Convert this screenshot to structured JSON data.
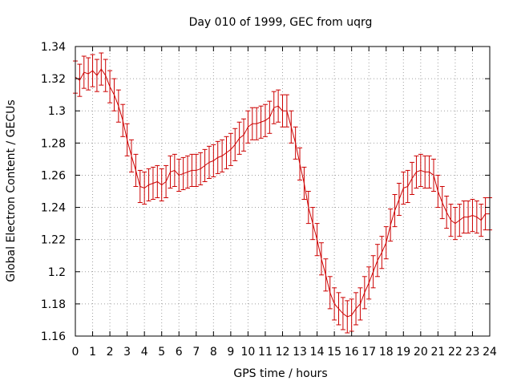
{
  "chart_data": {
    "type": "line",
    "title": "Day 010 of 1999, GEC from uqrg",
    "xlabel": "GPS time / hours",
    "ylabel": "Global Electron Content / GECUs",
    "xlim": [
      0,
      24
    ],
    "ylim": [
      1.16,
      1.34
    ],
    "grid": true,
    "x_ticks": [
      0,
      1,
      2,
      3,
      4,
      5,
      6,
      7,
      8,
      9,
      10,
      11,
      12,
      13,
      14,
      15,
      16,
      17,
      18,
      19,
      20,
      21,
      22,
      23,
      24
    ],
    "x_tick_labels": [
      "0",
      "1",
      "2",
      "3",
      "4",
      "5",
      "6",
      "7",
      "8",
      "9",
      "10",
      "11",
      "12",
      "13",
      "14",
      "15",
      "16",
      "17",
      "18",
      "19",
      "20",
      "21",
      "22",
      "23",
      "24"
    ],
    "y_ticks": [
      1.16,
      1.18,
      1.2,
      1.22,
      1.24,
      1.26,
      1.28,
      1.3,
      1.32,
      1.34
    ],
    "y_tick_labels": [
      "1.16",
      "1.18",
      "1.2",
      "1.22",
      "1.24",
      "1.26",
      "1.28",
      "1.3",
      "1.32",
      "1.34"
    ],
    "colors": {
      "series": "#cc0000",
      "grid": "#a0a0a0",
      "axis": "#000000"
    },
    "series": [
      {
        "name": "GEC",
        "error": 0.01,
        "x": [
          0,
          0.25,
          0.5,
          0.75,
          1,
          1.25,
          1.5,
          1.75,
          2,
          2.25,
          2.5,
          2.75,
          3,
          3.25,
          3.5,
          3.75,
          4,
          4.25,
          4.5,
          4.75,
          5,
          5.25,
          5.5,
          5.75,
          6,
          6.25,
          6.5,
          6.75,
          7,
          7.25,
          7.5,
          7.75,
          8,
          8.25,
          8.5,
          8.75,
          9,
          9.25,
          9.5,
          9.75,
          10,
          10.25,
          10.5,
          10.75,
          11,
          11.25,
          11.5,
          11.75,
          12,
          12.25,
          12.5,
          12.75,
          13,
          13.25,
          13.5,
          13.75,
          14,
          14.25,
          14.5,
          14.75,
          15,
          15.25,
          15.5,
          15.75,
          16,
          16.25,
          16.5,
          16.75,
          17,
          17.25,
          17.5,
          17.75,
          18,
          18.25,
          18.5,
          18.75,
          19,
          19.25,
          19.5,
          19.75,
          20,
          20.25,
          20.5,
          20.75,
          21,
          21.25,
          21.5,
          21.75,
          22,
          22.25,
          22.5,
          22.75,
          23,
          23.25,
          23.5,
          23.75,
          24
        ],
        "values": [
          1.321,
          1.319,
          1.324,
          1.323,
          1.325,
          1.322,
          1.326,
          1.322,
          1.315,
          1.31,
          1.303,
          1.294,
          1.282,
          1.272,
          1.263,
          1.253,
          1.252,
          1.254,
          1.255,
          1.256,
          1.254,
          1.256,
          1.262,
          1.263,
          1.26,
          1.261,
          1.262,
          1.263,
          1.263,
          1.264,
          1.266,
          1.268,
          1.269,
          1.271,
          1.272,
          1.274,
          1.276,
          1.279,
          1.283,
          1.285,
          1.29,
          1.292,
          1.292,
          1.293,
          1.294,
          1.296,
          1.302,
          1.303,
          1.3,
          1.3,
          1.29,
          1.28,
          1.267,
          1.255,
          1.24,
          1.23,
          1.22,
          1.208,
          1.198,
          1.187,
          1.18,
          1.177,
          1.174,
          1.172,
          1.173,
          1.177,
          1.18,
          1.187,
          1.193,
          1.2,
          1.207,
          1.212,
          1.218,
          1.229,
          1.238,
          1.245,
          1.252,
          1.253,
          1.258,
          1.262,
          1.263,
          1.262,
          1.262,
          1.26,
          1.25,
          1.243,
          1.237,
          1.232,
          1.23,
          1.232,
          1.234,
          1.234,
          1.235,
          1.234,
          1.232,
          1.236,
          1.236
        ]
      }
    ]
  }
}
